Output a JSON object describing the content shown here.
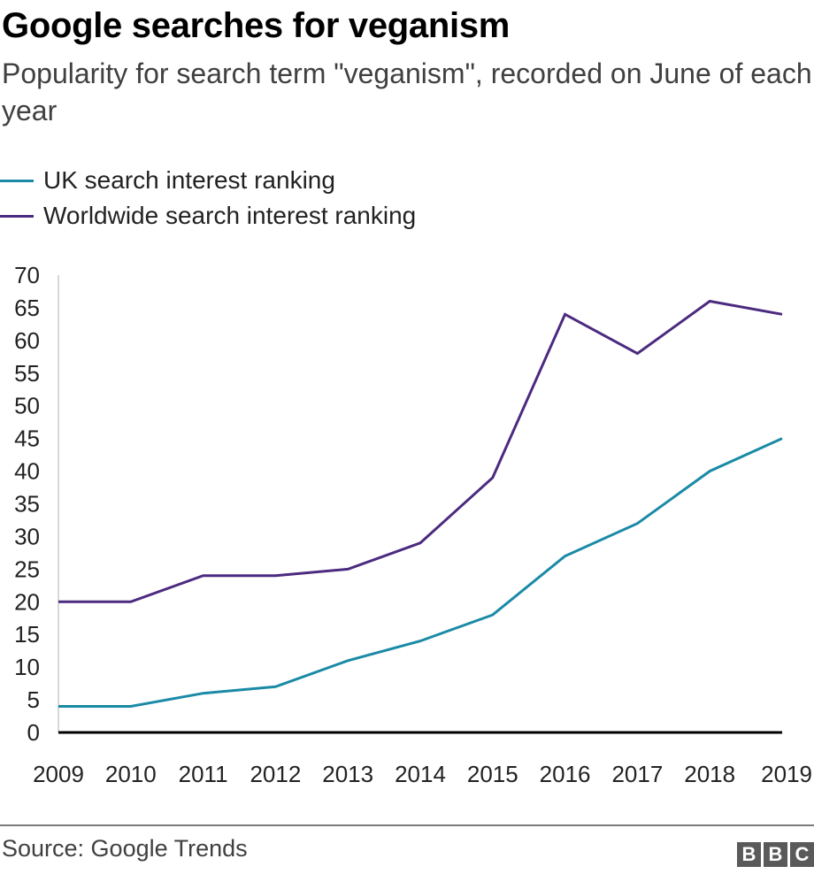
{
  "header": {
    "title": "Google searches for veganism",
    "subtitle": "Popularity for search term \"veganism\", recorded on June of each year"
  },
  "colors": {
    "uk": "#1a8aa6",
    "worldwide": "#4b2a7f",
    "axis": "#000000",
    "yaxis_line": "#cccccc"
  },
  "chart_data": {
    "type": "line",
    "title": "Google searches for veganism",
    "subtitle": "Popularity for search term \"veganism\", recorded on June of each year",
    "xlabel": "",
    "ylabel": "",
    "x": [
      "2009",
      "2010",
      "2011",
      "2012",
      "2013",
      "2014",
      "2015",
      "2016",
      "2017",
      "2018",
      "2019"
    ],
    "yticks": [
      "0",
      "5",
      "10",
      "15",
      "20",
      "25",
      "30",
      "35",
      "40",
      "45",
      "50",
      "55",
      "60",
      "65",
      "70"
    ],
    "ylim": [
      0,
      70
    ],
    "grid": false,
    "legend_position": "top-left",
    "series": [
      {
        "name": "UK search interest ranking",
        "color": "#1a8aa6",
        "values": [
          4,
          4,
          6,
          7,
          11,
          14,
          18,
          27,
          32,
          40,
          45
        ]
      },
      {
        "name": "Worldwide search interest ranking",
        "color": "#4b2a7f",
        "values": [
          20,
          20,
          24,
          24,
          25,
          29,
          39,
          64,
          58,
          66,
          64
        ]
      }
    ]
  },
  "footer": {
    "source": "Source: Google Trends",
    "logo_letters": [
      "B",
      "B",
      "C"
    ]
  }
}
